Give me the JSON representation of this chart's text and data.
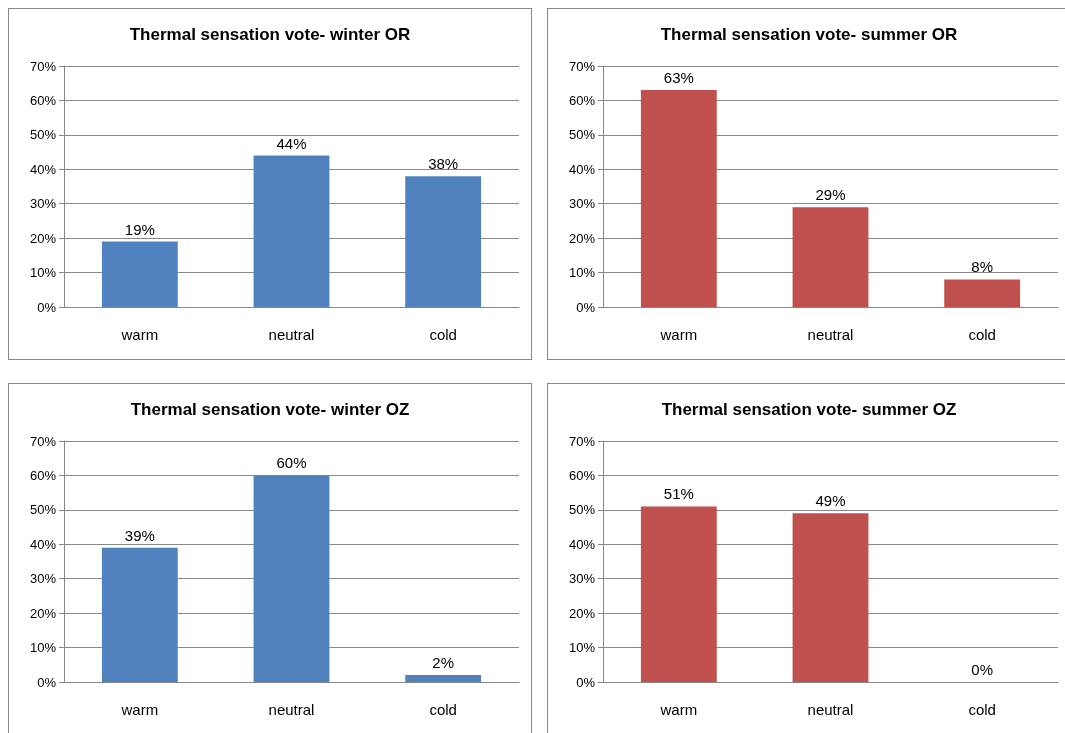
{
  "chart_data": [
    {
      "type": "bar",
      "title": "Thermal sensation vote- winter OR",
      "categories": [
        "warm",
        "neutral",
        "cold"
      ],
      "values": [
        19,
        44,
        38
      ],
      "value_labels": [
        "19%",
        "44%",
        "38%"
      ],
      "color": "#4f81bd",
      "ylim": [
        0,
        70
      ],
      "yticks": [
        {
          "value": 0,
          "label": "0%"
        },
        {
          "value": 10,
          "label": "10%"
        },
        {
          "value": 20,
          "label": "20%"
        },
        {
          "value": 30,
          "label": "30%"
        },
        {
          "value": 40,
          "label": "40%"
        },
        {
          "value": 50,
          "label": "50%"
        },
        {
          "value": 60,
          "label": "60%"
        },
        {
          "value": 70,
          "label": "70%"
        }
      ],
      "grid": "y"
    },
    {
      "type": "bar",
      "title": "Thermal sensation vote- summer OR",
      "categories": [
        "warm",
        "neutral",
        "cold"
      ],
      "values": [
        63,
        29,
        8
      ],
      "value_labels": [
        "63%",
        "29%",
        "8%"
      ],
      "color": "#c0504d",
      "ylim": [
        0,
        70
      ],
      "yticks": [
        {
          "value": 0,
          "label": "0%"
        },
        {
          "value": 10,
          "label": "10%"
        },
        {
          "value": 20,
          "label": "20%"
        },
        {
          "value": 30,
          "label": "30%"
        },
        {
          "value": 40,
          "label": "40%"
        },
        {
          "value": 50,
          "label": "50%"
        },
        {
          "value": 60,
          "label": "60%"
        },
        {
          "value": 70,
          "label": "70%"
        }
      ],
      "grid": "y"
    },
    {
      "type": "bar",
      "title": "Thermal sensation vote- winter OZ",
      "categories": [
        "warm",
        "neutral",
        "cold"
      ],
      "values": [
        39,
        60,
        2
      ],
      "value_labels": [
        "39%",
        "60%",
        "2%"
      ],
      "color": "#4f81bd",
      "ylim": [
        0,
        70
      ],
      "yticks": [
        {
          "value": 0,
          "label": "0%"
        },
        {
          "value": 10,
          "label": "10%"
        },
        {
          "value": 20,
          "label": "20%"
        },
        {
          "value": 30,
          "label": "30%"
        },
        {
          "value": 40,
          "label": "40%"
        },
        {
          "value": 50,
          "label": "50%"
        },
        {
          "value": 60,
          "label": "60%"
        },
        {
          "value": 70,
          "label": "70%"
        }
      ],
      "grid": "y"
    },
    {
      "type": "bar",
      "title": "Thermal sensation vote- summer OZ",
      "categories": [
        "warm",
        "neutral",
        "cold"
      ],
      "values": [
        51,
        49,
        0
      ],
      "value_labels": [
        "51%",
        "49%",
        "0%"
      ],
      "color": "#c0504d",
      "ylim": [
        0,
        70
      ],
      "yticks": [
        {
          "value": 0,
          "label": "0%"
        },
        {
          "value": 10,
          "label": "10%"
        },
        {
          "value": 20,
          "label": "20%"
        },
        {
          "value": 30,
          "label": "30%"
        },
        {
          "value": 40,
          "label": "40%"
        },
        {
          "value": 50,
          "label": "50%"
        },
        {
          "value": 60,
          "label": "60%"
        },
        {
          "value": 70,
          "label": "70%"
        }
      ],
      "grid": "y"
    }
  ]
}
